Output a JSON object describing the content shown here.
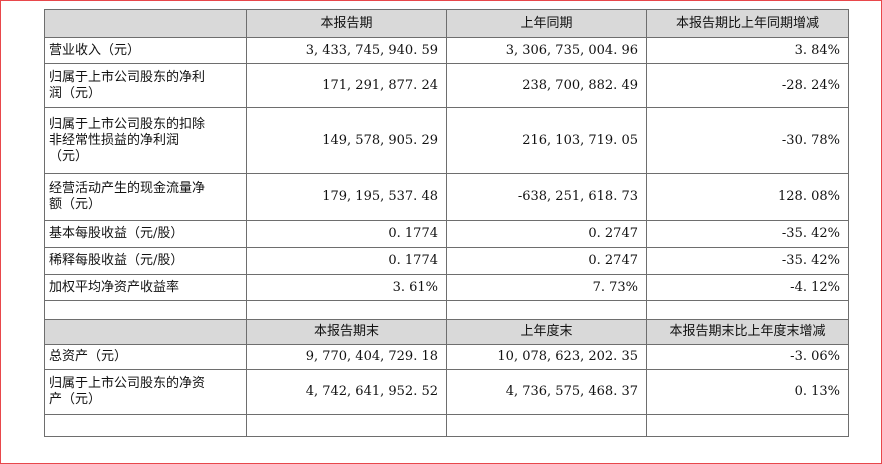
{
  "header1": [
    "本报告期",
    "上年同期",
    "本报告期比上年同期增减"
  ],
  "rows1": [
    {
      "label": "营业收入（元）",
      "current": "3, 433, 745, 940. 59",
      "prior": "3, 306, 735, 004. 96",
      "change": "3. 84%"
    },
    {
      "label": "归属于上市公司股东的净利\n润（元）",
      "current": "171, 291, 877. 24",
      "prior": "238, 700, 882. 49",
      "change": "-28. 24%"
    },
    {
      "label": "归属于上市公司股东的扣除\n非经常性损益的净利润\n（元）",
      "current": "149, 578, 905. 29",
      "prior": "216, 103, 719. 05",
      "change": "-30. 78%"
    },
    {
      "label": "经营活动产生的现金流量净\n额（元）",
      "current": "179, 195, 537. 48",
      "prior": "-638, 251, 618. 73",
      "change": "128. 08%"
    },
    {
      "label": "基本每股收益（元/股）",
      "current": "0. 1774",
      "prior": "0. 2747",
      "change": "-35. 42%"
    },
    {
      "label": "稀释每股收益（元/股）",
      "current": "0. 1774",
      "prior": "0. 2747",
      "change": "-35. 42%"
    },
    {
      "label": "加权平均净资产收益率",
      "current": "3. 61%",
      "prior": "7. 73%",
      "change": "-4. 12%"
    }
  ],
  "header2": [
    "本报告期末",
    "上年度末",
    "本报告期末比上年度末增减"
  ],
  "rows2": [
    {
      "label": "总资产（元）",
      "current": "9, 770, 404, 729. 18",
      "prior": "10, 078, 623, 202. 35",
      "change": "-3. 06%"
    },
    {
      "label": "归属于上市公司股东的净资\n产（元）",
      "current": "4, 742, 641, 952. 52",
      "prior": "4, 736, 575, 468. 37",
      "change": "0. 13%"
    }
  ]
}
